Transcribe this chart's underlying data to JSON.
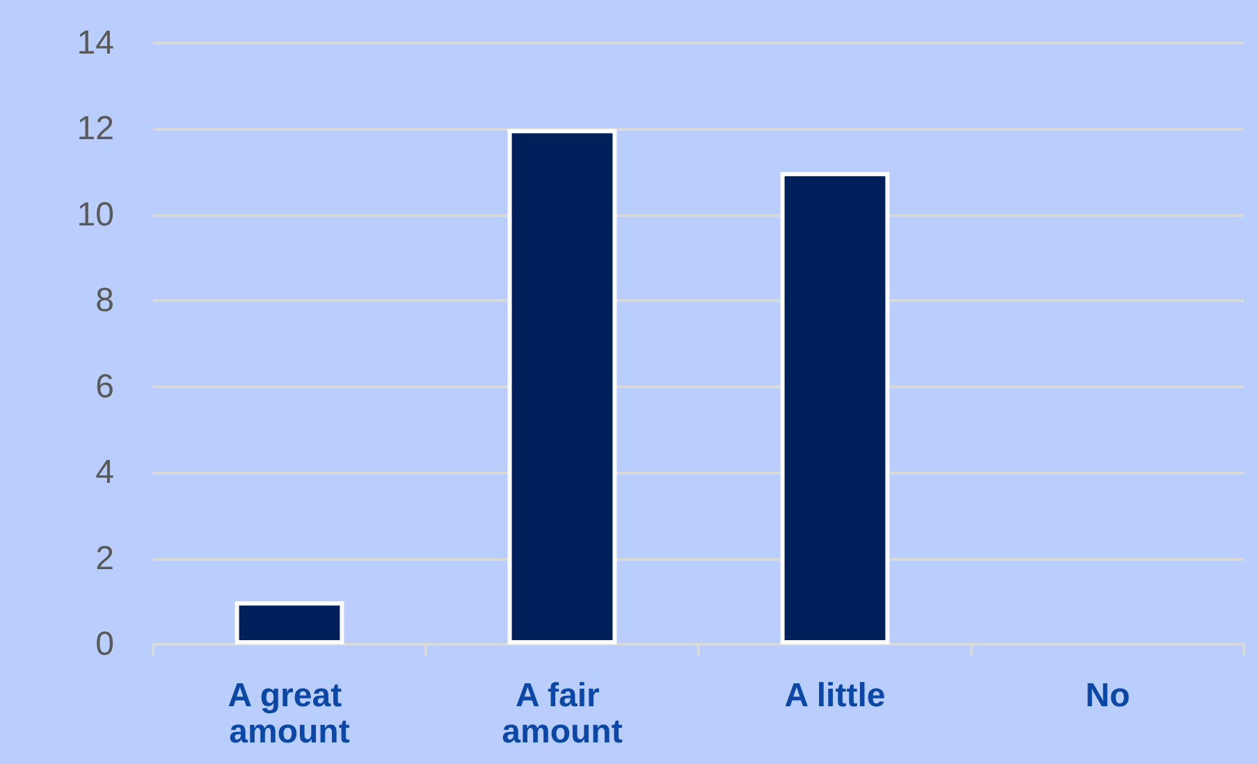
{
  "chart_data": {
    "type": "bar",
    "categories": [
      "A great amount",
      "A fair amount",
      "A little",
      "No"
    ],
    "values": [
      1,
      12,
      11,
      null
    ],
    "color": "#00205b",
    "ylim": [
      0,
      14
    ],
    "yticks": [
      0,
      2,
      4,
      6,
      8,
      10,
      12,
      14
    ],
    "grid": "y"
  }
}
